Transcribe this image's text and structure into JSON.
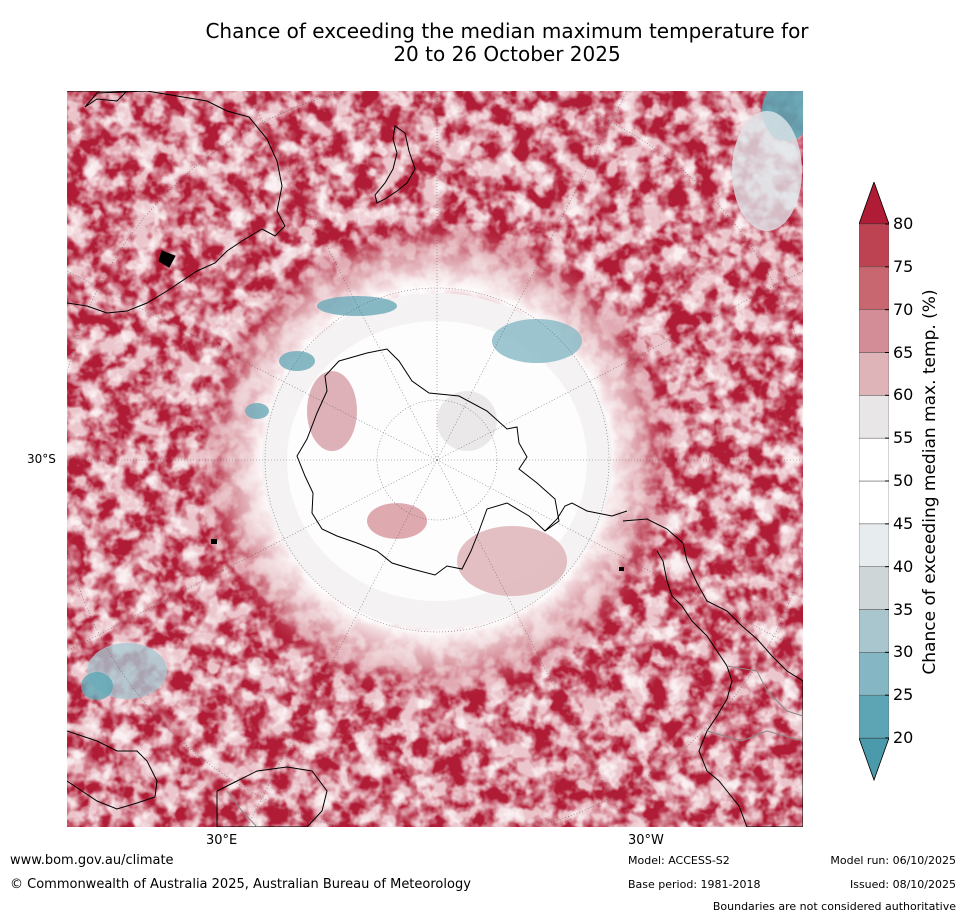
{
  "title": {
    "line1": "Chance of exceeding the median maximum temperature for",
    "line2": "20 to 26 October 2025"
  },
  "map": {
    "projection": "south polar stereographic",
    "lat_labels": [
      "30°S"
    ],
    "lon_labels": [
      "30°E",
      "30°W"
    ]
  },
  "colorbar": {
    "label": "Chance of exceeding median max. temp. (%)",
    "ticks": [
      "20",
      "25",
      "30",
      "35",
      "40",
      "45",
      "50",
      "55",
      "60",
      "65",
      "70",
      "75",
      "80"
    ],
    "band_colors": [
      "#5da5b4",
      "#84b6c3",
      "#a9c6cf",
      "#cfd6d8",
      "#e7ecef",
      "#ffffff",
      "#ffffff",
      "#e8e6e6",
      "#deb4b9",
      "#d38d96",
      "#c8676f",
      "#bd4352"
    ],
    "under_color": "#4a9aab",
    "over_color": "#b01c36"
  },
  "footer": {
    "website": "www.bom.gov.au/climate",
    "copyright": "© Commonwealth of Australia 2025, Australian Bureau of Meteorology",
    "model": "Model: ACCESS-S2",
    "base_period": "Base period: 1981-2018",
    "model_run": "Model run: 06/10/2025",
    "issued": "Issued: 08/10/2025",
    "disclaimer": "Boundaries are not considered authoritative"
  }
}
